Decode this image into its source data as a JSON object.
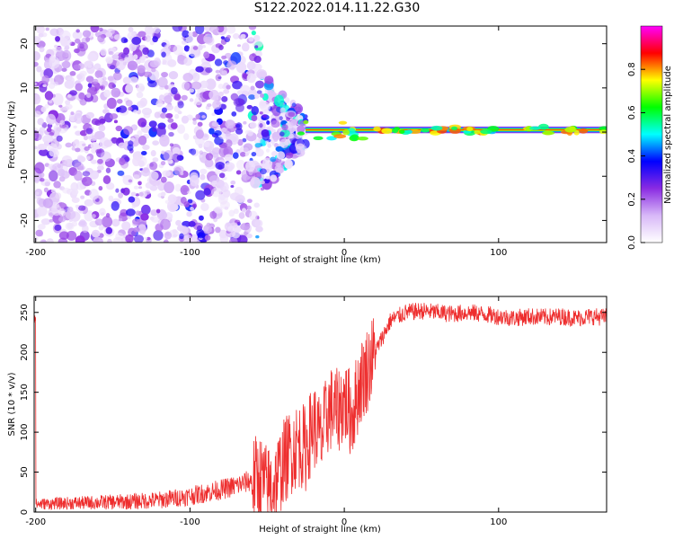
{
  "title": "S122.2022.014.11.22.G30",
  "chart_data": [
    {
      "type": "heatmap",
      "xlabel": "Height of straight line (km)",
      "ylabel": "Frequency (Hz)",
      "xlim": [
        -201,
        170
      ],
      "ylim": [
        -25,
        24
      ],
      "x_ticks": [
        -200,
        -100,
        0,
        100
      ],
      "y_ticks": [
        -20,
        -10,
        0,
        10,
        20
      ],
      "colorbar": {
        "label": "Normalized spectral amplitude",
        "range": [
          0,
          1
        ],
        "ticks": [
          0.0,
          0.2,
          0.4,
          0.6,
          0.8
        ],
        "colormap": [
          "#ffffff",
          "#d8b8f8",
          "#8a2be2",
          "#0000ff",
          "#00ffff",
          "#00ff00",
          "#ffff00",
          "#ff0000",
          "#ff00ff"
        ]
      },
      "features": {
        "diffuse_region_x": [
          -201,
          -55
        ],
        "diffuse_region_freq": [
          -25,
          24
        ],
        "transition_x": [
          -55,
          -25
        ],
        "carrier_line_freq": 0.5,
        "carrier_line_x": [
          -25,
          170
        ],
        "carrier_peak_amplitude": 0.85
      }
    },
    {
      "type": "line",
      "xlabel": "Height of straight line (km)",
      "ylabel": "SNR (10 * v/v)",
      "xlim": [
        -201,
        170
      ],
      "ylim": [
        0,
        270
      ],
      "x_ticks": [
        -200,
        -100,
        0,
        100
      ],
      "y_ticks": [
        0,
        50,
        100,
        150,
        200,
        250
      ],
      "color": "#ee2e2e",
      "series": [
        {
          "x": [
            -200,
            -180,
            -160,
            -140,
            -120,
            -100,
            -90,
            -80,
            -70,
            -60,
            -55,
            -50,
            -45,
            -40,
            -35,
            -30,
            -25,
            -20,
            -15,
            -10,
            -5,
            0,
            5,
            10,
            15,
            20,
            25,
            30,
            40,
            50,
            60,
            70,
            80,
            90,
            100,
            110,
            120,
            130,
            140,
            150,
            160,
            170
          ],
          "values": [
            10,
            11,
            12,
            13,
            15,
            20,
            24,
            28,
            33,
            40,
            45,
            30,
            35,
            60,
            75,
            85,
            80,
            110,
            90,
            130,
            125,
            140,
            120,
            160,
            180,
            200,
            220,
            240,
            250,
            252,
            250,
            248,
            250,
            248,
            245,
            243,
            245,
            244,
            245,
            243,
            245,
            244
          ]
        }
      ]
    }
  ]
}
